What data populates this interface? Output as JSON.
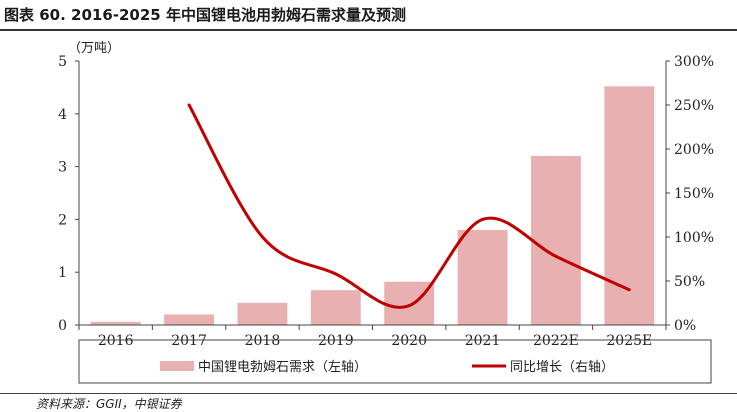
{
  "title": "图表 60. 2016-2025 年中国锂电池用勃姆石需求量及预测",
  "source": "资料来源：GGII，中银证券",
  "colors": {
    "bar": "#e8b0b0",
    "line": "#c00000",
    "axis": "#444444"
  },
  "chart_data": {
    "type": "bar",
    "categories": [
      "2016",
      "2017",
      "2018",
      "2019",
      "2020",
      "2021",
      "2022E",
      "2025E"
    ],
    "y_left": {
      "label": "（万吨）",
      "ylim": [
        0,
        5
      ],
      "ticks": [
        "0",
        "1",
        "2",
        "3",
        "4",
        "5"
      ]
    },
    "y_right": {
      "ylim": [
        0,
        300
      ],
      "ticks": [
        "0%",
        "50%",
        "100%",
        "150%",
        "200%",
        "250%",
        "300%"
      ]
    },
    "series": [
      {
        "name": "中国锂电勃姆石需求（左轴）",
        "type": "bar",
        "axis": "left",
        "values": [
          0.06,
          0.2,
          0.42,
          0.66,
          0.82,
          1.8,
          3.2,
          4.52
        ]
      },
      {
        "name": "同比增长（右轴）",
        "type": "line",
        "axis": "right",
        "values": [
          null,
          250,
          100,
          58,
          22,
          120,
          78,
          40
        ]
      }
    ],
    "grid": false,
    "legend": "bottom"
  }
}
